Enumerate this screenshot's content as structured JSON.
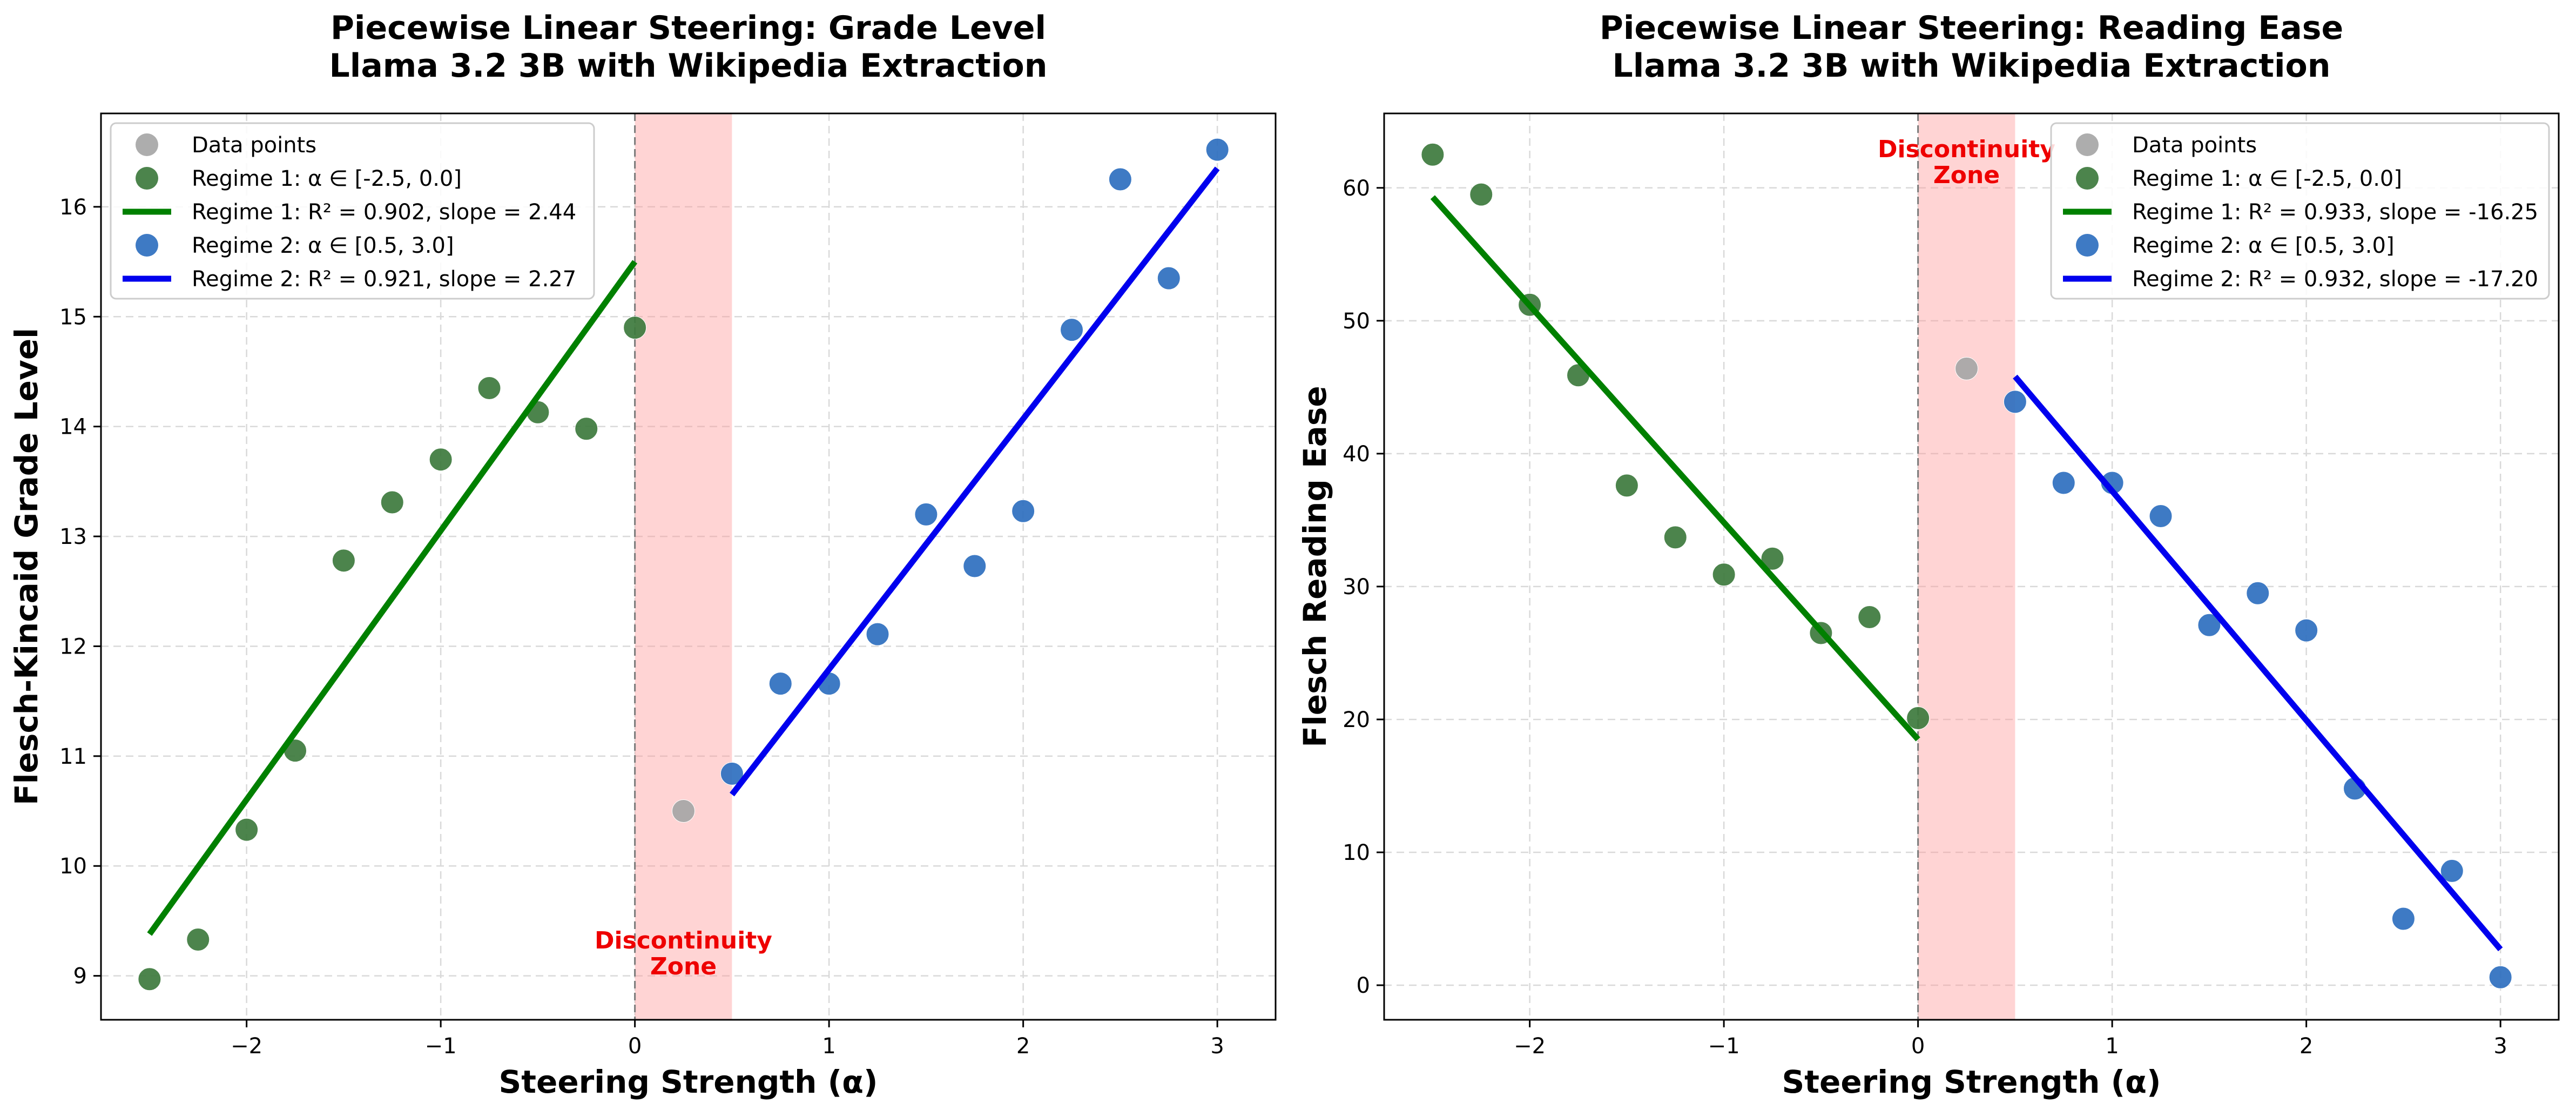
{
  "chart_data": [
    {
      "type": "scatter",
      "title": "Piecewise Linear Steering: Grade Level\nLlama 3.2 3B with Wikipedia Extraction",
      "xlabel": "Steering Strength (α)",
      "ylabel": "Flesch-Kincaid Grade Level",
      "xlim": [
        -2.75,
        3.3
      ],
      "ylim": [
        8.6,
        16.85
      ],
      "xticks": [
        -2,
        -1,
        0,
        1,
        2,
        3
      ],
      "xtick_labels": [
        "−2",
        "−1",
        "0",
        "1",
        "2",
        "3"
      ],
      "yticks": [
        9,
        10,
        11,
        12,
        13,
        14,
        15,
        16
      ],
      "ytick_labels": [
        "9",
        "10",
        "11",
        "12",
        "13",
        "14",
        "15",
        "16"
      ],
      "grid": true,
      "legend_position": "top-left",
      "discontinuity_zone": {
        "x_start": 0.0,
        "x_end": 0.5,
        "label": "Discontinuity\nZone",
        "label_x": 0.25,
        "label_y": 9.25
      },
      "vline_x": 0.0,
      "series": [
        {
          "name": "Data points",
          "kind": "scatter",
          "color": "#a6a6a6",
          "x": [
            0.25
          ],
          "y": [
            10.5
          ]
        },
        {
          "name": "Regime 1: α ∈ [-2.5, 0.0]",
          "kind": "scatter",
          "color": "#3d7a3d",
          "x": [
            -2.5,
            -2.25,
            -2.0,
            -1.75,
            -1.5,
            -1.25,
            -1.0,
            -0.75,
            -0.5,
            -0.25,
            0.0
          ],
          "y": [
            8.97,
            9.33,
            10.33,
            11.05,
            12.78,
            13.31,
            13.7,
            14.35,
            14.13,
            13.98,
            14.9
          ]
        },
        {
          "name": "Regime 1: R² = 0.902, slope = 2.44",
          "kind": "line",
          "color": "#008000",
          "x": [
            -2.5,
            0.0
          ],
          "y": [
            9.38,
            15.5
          ]
        },
        {
          "name": "Regime 2: α ∈ [0.5, 3.0]",
          "kind": "scatter",
          "color": "#2e6fbf",
          "x": [
            0.5,
            0.75,
            1.0,
            1.25,
            1.5,
            1.75,
            2.0,
            2.25,
            2.5,
            2.75,
            3.0
          ],
          "y": [
            10.84,
            11.66,
            11.66,
            12.11,
            13.2,
            12.73,
            13.23,
            14.88,
            16.25,
            15.35,
            16.52
          ]
        },
        {
          "name": "Regime 2: R² = 0.921, slope = 2.27",
          "kind": "line",
          "color": "#0000ee",
          "x": [
            0.5,
            3.0
          ],
          "y": [
            10.65,
            16.35
          ]
        }
      ]
    },
    {
      "type": "scatter",
      "title": "Piecewise Linear Steering: Reading Ease\nLlama 3.2 3B with Wikipedia Extraction",
      "xlabel": "Steering Strength (α)",
      "ylabel": "Flesch Reading Ease",
      "xlim": [
        -2.75,
        3.3
      ],
      "ylim": [
        -2.6,
        65.6
      ],
      "xticks": [
        -2,
        -1,
        0,
        1,
        2,
        3
      ],
      "xtick_labels": [
        "−2",
        "−1",
        "0",
        "1",
        "2",
        "3"
      ],
      "yticks": [
        0,
        10,
        20,
        30,
        40,
        50,
        60
      ],
      "ytick_labels": [
        "0",
        "10",
        "20",
        "30",
        "40",
        "50",
        "60"
      ],
      "grid": true,
      "legend_position": "top-right",
      "discontinuity_zone": {
        "x_start": 0.0,
        "x_end": 0.5,
        "label": "Discontinuity\nZone",
        "label_x": 0.25,
        "label_y": 62.3
      },
      "vline_x": 0.0,
      "series": [
        {
          "name": "Data points",
          "kind": "scatter",
          "color": "#a6a6a6",
          "x": [
            0.25
          ],
          "y": [
            46.4
          ]
        },
        {
          "name": "Regime 1: α ∈ [-2.5, 0.0]",
          "kind": "scatter",
          "color": "#3d7a3d",
          "x": [
            -2.5,
            -2.25,
            -2.0,
            -1.75,
            -1.5,
            -1.25,
            -1.0,
            -0.75,
            -0.5,
            -0.25,
            0.0
          ],
          "y": [
            62.5,
            59.5,
            51.2,
            45.9,
            37.6,
            33.7,
            30.9,
            32.1,
            26.5,
            27.7,
            20.1
          ]
        },
        {
          "name": "Regime 1: R² = 0.933, slope = -16.25",
          "kind": "line",
          "color": "#008000",
          "x": [
            -2.5,
            0.0
          ],
          "y": [
            59.3,
            18.5
          ]
        },
        {
          "name": "Regime 2: α ∈ [0.5, 3.0]",
          "kind": "scatter",
          "color": "#2e6fbf",
          "x": [
            0.5,
            0.75,
            1.0,
            1.25,
            1.5,
            1.75,
            2.0,
            2.25,
            2.5,
            2.75,
            3.0
          ],
          "y": [
            43.9,
            37.8,
            37.8,
            35.3,
            27.1,
            29.5,
            26.7,
            14.8,
            5.0,
            8.6,
            0.6
          ]
        },
        {
          "name": "Regime 2: R² = 0.932, slope = -17.20",
          "kind": "line",
          "color": "#0000ee",
          "x": [
            0.5,
            3.0
          ],
          "y": [
            45.8,
            2.7
          ]
        }
      ]
    }
  ]
}
